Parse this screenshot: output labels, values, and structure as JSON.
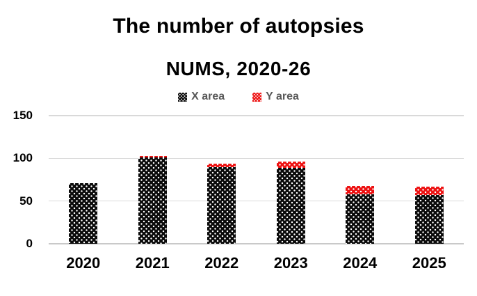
{
  "chart_data": {
    "type": "bar",
    "stacked": true,
    "title": "The number of autopsies",
    "subtitle": "NUMS, 2020-26",
    "categories": [
      "2020",
      "2021",
      "2022",
      "2023",
      "2024",
      "2025"
    ],
    "series": [
      {
        "name": "X area",
        "color": "#0a0a0a",
        "pattern": "white-dots",
        "values": [
          71,
          101,
          90,
          89,
          58,
          57
        ]
      },
      {
        "name": "Y area",
        "color": "#ed1111",
        "pattern": "white-dots",
        "values": [
          0,
          2,
          4,
          7,
          10,
          10
        ]
      }
    ],
    "totals": [
      71,
      103,
      94,
      96,
      68,
      67
    ],
    "ylim": [
      0,
      150
    ],
    "yticks": [
      0,
      50,
      100,
      150
    ],
    "xlabel": "",
    "ylabel": "",
    "grid": "horizontal",
    "gridline_color": "#d9d9d9",
    "baseline_color": "#c9c9c9",
    "legend_position": "top",
    "legend_text_color": "#595959",
    "tick_label_color": "#000000",
    "background_color": "#ffffff"
  }
}
